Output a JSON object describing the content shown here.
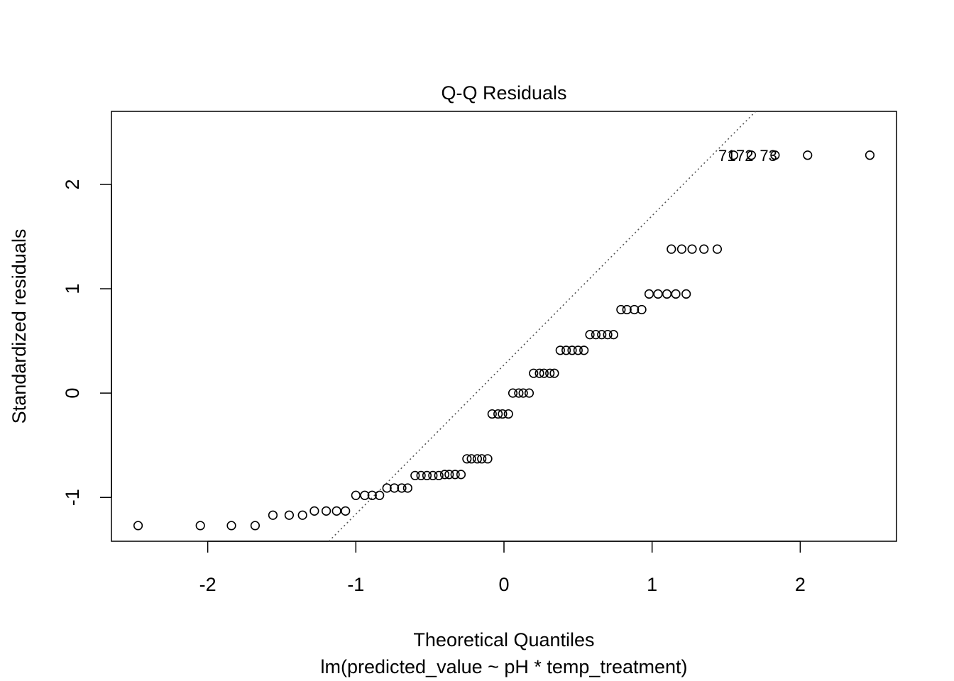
{
  "chart_data": {
    "type": "scatter",
    "title": "Q-Q Residuals",
    "xlabel": "Theoretical Quantiles",
    "subtitle": "lm(predicted_value ~ pH * temp_treatment)",
    "ylabel": "Standardized residuals",
    "xlim": [
      -2.65,
      2.65
    ],
    "ylim": [
      -1.42,
      2.7
    ],
    "xticks": [
      -2,
      -1,
      0,
      1,
      2
    ],
    "xtick_labels": [
      "-2",
      "-1",
      "0",
      "1",
      "2"
    ],
    "yticks": [
      -1,
      0,
      1,
      2
    ],
    "ytick_labels": [
      "-1",
      "0",
      "1",
      "2"
    ],
    "grid": false,
    "reference_line": {
      "style": "dotted",
      "color": "#555555",
      "slope": 1.43,
      "intercept": 0.27
    },
    "point_style": {
      "shape": "open-circle",
      "color": "#000000"
    },
    "points": [
      {
        "x": -2.47,
        "y": -1.27
      },
      {
        "x": -2.05,
        "y": -1.27
      },
      {
        "x": -1.84,
        "y": -1.27
      },
      {
        "x": -1.68,
        "y": -1.27
      },
      {
        "x": -1.56,
        "y": -1.17
      },
      {
        "x": -1.45,
        "y": -1.17
      },
      {
        "x": -1.36,
        "y": -1.17
      },
      {
        "x": -1.28,
        "y": -1.13
      },
      {
        "x": -1.2,
        "y": -1.13
      },
      {
        "x": -1.13,
        "y": -1.13
      },
      {
        "x": -1.07,
        "y": -1.13
      },
      {
        "x": -1.0,
        "y": -0.98
      },
      {
        "x": -0.94,
        "y": -0.98
      },
      {
        "x": -0.89,
        "y": -0.98
      },
      {
        "x": -0.84,
        "y": -0.98
      },
      {
        "x": -0.79,
        "y": -0.91
      },
      {
        "x": -0.74,
        "y": -0.91
      },
      {
        "x": -0.69,
        "y": -0.91
      },
      {
        "x": -0.65,
        "y": -0.91
      },
      {
        "x": -0.6,
        "y": -0.79
      },
      {
        "x": -0.56,
        "y": -0.79
      },
      {
        "x": -0.52,
        "y": -0.79
      },
      {
        "x": -0.48,
        "y": -0.79
      },
      {
        "x": -0.44,
        "y": -0.79
      },
      {
        "x": -0.4,
        "y": -0.78
      },
      {
        "x": -0.37,
        "y": -0.78
      },
      {
        "x": -0.33,
        "y": -0.78
      },
      {
        "x": -0.29,
        "y": -0.78
      },
      {
        "x": -0.25,
        "y": -0.63
      },
      {
        "x": -0.22,
        "y": -0.63
      },
      {
        "x": -0.18,
        "y": -0.63
      },
      {
        "x": -0.15,
        "y": -0.63
      },
      {
        "x": -0.11,
        "y": -0.63
      },
      {
        "x": -0.08,
        "y": -0.2
      },
      {
        "x": -0.04,
        "y": -0.2
      },
      {
        "x": -0.01,
        "y": -0.2
      },
      {
        "x": 0.03,
        "y": -0.2
      },
      {
        "x": 0.06,
        "y": 0.0
      },
      {
        "x": 0.1,
        "y": 0.0
      },
      {
        "x": 0.13,
        "y": 0.0
      },
      {
        "x": 0.17,
        "y": 0.0
      },
      {
        "x": 0.2,
        "y": 0.19
      },
      {
        "x": 0.24,
        "y": 0.19
      },
      {
        "x": 0.27,
        "y": 0.19
      },
      {
        "x": 0.31,
        "y": 0.19
      },
      {
        "x": 0.34,
        "y": 0.19
      },
      {
        "x": 0.38,
        "y": 0.41
      },
      {
        "x": 0.42,
        "y": 0.41
      },
      {
        "x": 0.46,
        "y": 0.41
      },
      {
        "x": 0.5,
        "y": 0.41
      },
      {
        "x": 0.54,
        "y": 0.41
      },
      {
        "x": 0.58,
        "y": 0.56
      },
      {
        "x": 0.62,
        "y": 0.56
      },
      {
        "x": 0.66,
        "y": 0.56
      },
      {
        "x": 0.7,
        "y": 0.56
      },
      {
        "x": 0.74,
        "y": 0.56
      },
      {
        "x": 0.79,
        "y": 0.8
      },
      {
        "x": 0.83,
        "y": 0.8
      },
      {
        "x": 0.88,
        "y": 0.8
      },
      {
        "x": 0.93,
        "y": 0.8
      },
      {
        "x": 0.98,
        "y": 0.95
      },
      {
        "x": 1.04,
        "y": 0.95
      },
      {
        "x": 1.1,
        "y": 0.95
      },
      {
        "x": 1.16,
        "y": 0.95
      },
      {
        "x": 1.23,
        "y": 0.95
      },
      {
        "x": 1.13,
        "y": 1.38
      },
      {
        "x": 1.2,
        "y": 1.38
      },
      {
        "x": 1.27,
        "y": 1.38
      },
      {
        "x": 1.35,
        "y": 1.38
      },
      {
        "x": 1.44,
        "y": 1.38
      },
      {
        "x": 1.55,
        "y": 2.28
      },
      {
        "x": 1.67,
        "y": 2.28
      },
      {
        "x": 1.83,
        "y": 2.28
      },
      {
        "x": 2.05,
        "y": 2.28
      },
      {
        "x": 2.47,
        "y": 2.28
      }
    ],
    "annotations": [
      {
        "text": "71",
        "x": 1.55,
        "y": 2.28
      },
      {
        "text": "72",
        "x": 1.67,
        "y": 2.28
      },
      {
        "text": "73",
        "x": 1.83,
        "y": 2.28
      }
    ]
  }
}
